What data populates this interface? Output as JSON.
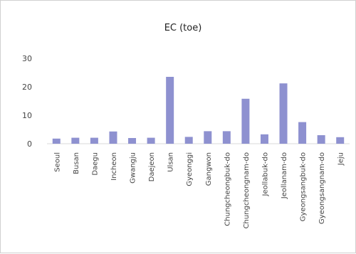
{
  "chart_data": {
    "type": "bar",
    "title": "EC (toe)",
    "categories": [
      "Seoul",
      "Busan",
      "Daegu",
      "Incheon",
      "Gwangju",
      "Daejeon",
      "Ulsan",
      "Gyeonggi",
      "Gangwon",
      "Chungcheongbuk-do",
      "Chungcheongnam-do",
      "Jeollabuk-do",
      "Jeollanam-do",
      "Gyeongsangbuk-do",
      "Gyeongsangnam-do",
      "Jeju"
    ],
    "values": [
      1.8,
      2.1,
      2.1,
      4.3,
      2.0,
      2.1,
      23.5,
      2.4,
      4.4,
      4.4,
      15.8,
      3.3,
      21.2,
      7.6,
      3.0,
      2.3
    ],
    "ylim": [
      0,
      30
    ],
    "yticks": [
      0,
      10,
      20,
      30
    ],
    "grid": false,
    "bar_color": "#8e91d0"
  }
}
